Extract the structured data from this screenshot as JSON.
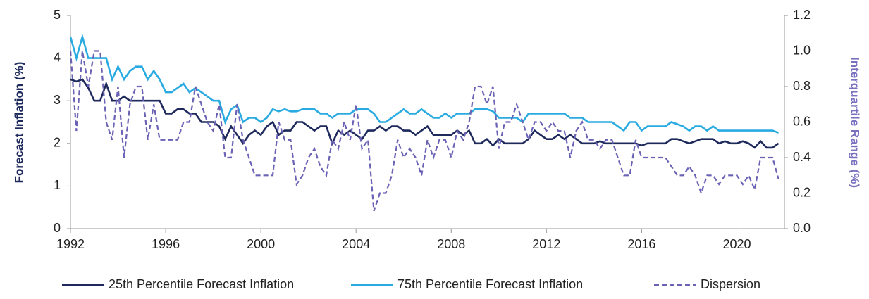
{
  "chart_data": {
    "type": "line",
    "x": [
      1992,
      1992.25,
      1992.5,
      1992.75,
      1993,
      1993.25,
      1993.5,
      1993.75,
      1994,
      1994.25,
      1994.5,
      1994.75,
      1995,
      1995.25,
      1995.5,
      1995.75,
      1996,
      1996.25,
      1996.5,
      1996.75,
      1997,
      1997.25,
      1997.5,
      1997.75,
      1998,
      1998.25,
      1998.5,
      1998.75,
      1999,
      1999.25,
      1999.5,
      1999.75,
      2000,
      2000.25,
      2000.5,
      2000.75,
      2001,
      2001.25,
      2001.5,
      2001.75,
      2002,
      2002.25,
      2002.5,
      2002.75,
      2003,
      2003.25,
      2003.5,
      2003.75,
      2004,
      2004.25,
      2004.5,
      2004.75,
      2005,
      2005.25,
      2005.5,
      2005.75,
      2006,
      2006.25,
      2006.5,
      2006.75,
      2007,
      2007.25,
      2007.5,
      2007.75,
      2008,
      2008.25,
      2008.5,
      2008.75,
      2009,
      2009.25,
      2009.5,
      2009.75,
      2010,
      2010.25,
      2010.5,
      2010.75,
      2011,
      2011.25,
      2011.5,
      2011.75,
      2012,
      2012.25,
      2012.5,
      2012.75,
      2013,
      2013.25,
      2013.5,
      2013.75,
      2014,
      2014.25,
      2014.5,
      2014.75,
      2015,
      2015.25,
      2015.5,
      2015.75,
      2016,
      2016.25,
      2016.5,
      2016.75,
      2017,
      2017.25,
      2017.5,
      2017.75,
      2018,
      2018.25,
      2018.5,
      2018.75,
      2019,
      2019.25,
      2019.5,
      2019.75,
      2020,
      2020.25,
      2020.5,
      2020.75,
      2021,
      2021.25,
      2021.5,
      2021.75
    ],
    "series": [
      {
        "name": "25th Percentile Forecast Inflation",
        "color": "#1f2a5c",
        "dash": false,
        "values": [
          3.5,
          3.45,
          3.5,
          3.3,
          3.0,
          3.0,
          3.4,
          3.0,
          3.0,
          3.1,
          3.0,
          3.0,
          3.0,
          3.0,
          3.0,
          3.0,
          2.7,
          2.7,
          2.8,
          2.8,
          2.7,
          2.7,
          2.5,
          2.5,
          2.5,
          2.4,
          2.1,
          2.4,
          2.2,
          2.0,
          2.2,
          2.3,
          2.2,
          2.4,
          2.5,
          2.2,
          2.3,
          2.3,
          2.5,
          2.5,
          2.4,
          2.3,
          2.4,
          2.4,
          2.0,
          2.3,
          2.2,
          2.3,
          2.2,
          2.1,
          2.3,
          2.3,
          2.4,
          2.3,
          2.4,
          2.4,
          2.3,
          2.3,
          2.2,
          2.3,
          2.4,
          2.2,
          2.2,
          2.2,
          2.2,
          2.3,
          2.2,
          2.3,
          2.0,
          2.0,
          2.1,
          1.95,
          2.1,
          2.0,
          2.0,
          2.0,
          2.0,
          2.1,
          2.3,
          2.2,
          2.1,
          2.1,
          2.2,
          2.1,
          2.2,
          2.1,
          2.0,
          2.0,
          2.0,
          2.05,
          2.0,
          2.0,
          2.0,
          2.0,
          2.0,
          2.0,
          1.95,
          2.0,
          2.0,
          2.0,
          2.0,
          2.1,
          2.1,
          2.05,
          2.0,
          2.05,
          2.1,
          2.1,
          2.1,
          2.0,
          2.05,
          2.0,
          2.0,
          2.05,
          2.0,
          1.9,
          2.05,
          1.9,
          1.9,
          2.0
        ]
      },
      {
        "name": "75th Percentile Forecast Inflation",
        "color": "#29abe2",
        "dash": false,
        "values": [
          4.5,
          4.0,
          4.5,
          4.0,
          4.0,
          4.0,
          4.0,
          3.5,
          3.8,
          3.5,
          3.7,
          3.8,
          3.8,
          3.5,
          3.7,
          3.5,
          3.2,
          3.2,
          3.3,
          3.4,
          3.2,
          3.3,
          3.2,
          3.1,
          3.0,
          3.0,
          2.5,
          2.8,
          2.9,
          2.5,
          2.6,
          2.6,
          2.5,
          2.6,
          2.8,
          2.75,
          2.8,
          2.75,
          2.75,
          2.8,
          2.8,
          2.8,
          2.7,
          2.7,
          2.6,
          2.7,
          2.7,
          2.7,
          2.8,
          2.8,
          2.8,
          2.7,
          2.5,
          2.5,
          2.6,
          2.7,
          2.8,
          2.7,
          2.7,
          2.8,
          2.7,
          2.6,
          2.6,
          2.7,
          2.6,
          2.7,
          2.7,
          2.7,
          2.8,
          2.8,
          2.8,
          2.75,
          2.6,
          2.6,
          2.6,
          2.6,
          2.5,
          2.7,
          2.7,
          2.7,
          2.7,
          2.7,
          2.7,
          2.7,
          2.6,
          2.6,
          2.6,
          2.5,
          2.5,
          2.5,
          2.5,
          2.5,
          2.4,
          2.3,
          2.5,
          2.5,
          2.3,
          2.4,
          2.4,
          2.4,
          2.4,
          2.5,
          2.45,
          2.4,
          2.3,
          2.4,
          2.4,
          2.3,
          2.4,
          2.3,
          2.3,
          2.3,
          2.3,
          2.3,
          2.3,
          2.3,
          2.3,
          2.3,
          2.3,
          2.25
        ]
      },
      {
        "name": "Dispersion",
        "color": "#6a62b4",
        "dash": true,
        "axis": "y2",
        "values": [
          1.0,
          0.55,
          1.0,
          0.8,
          1.0,
          1.0,
          0.6,
          0.5,
          0.8,
          0.4,
          0.7,
          0.8,
          0.8,
          0.5,
          0.7,
          0.5,
          0.5,
          0.5,
          0.5,
          0.6,
          0.6,
          0.8,
          0.7,
          0.6,
          0.55,
          0.7,
          0.4,
          0.4,
          0.7,
          0.5,
          0.4,
          0.3,
          0.3,
          0.3,
          0.3,
          0.6,
          0.5,
          0.5,
          0.25,
          0.3,
          0.4,
          0.45,
          0.35,
          0.3,
          0.5,
          0.45,
          0.6,
          0.5,
          0.7,
          0.45,
          0.5,
          0.1,
          0.2,
          0.2,
          0.3,
          0.5,
          0.4,
          0.45,
          0.4,
          0.3,
          0.5,
          0.4,
          0.5,
          0.5,
          0.4,
          0.55,
          0.5,
          0.6,
          0.8,
          0.8,
          0.7,
          0.8,
          0.45,
          0.6,
          0.6,
          0.7,
          0.6,
          0.5,
          0.6,
          0.6,
          0.55,
          0.6,
          0.55,
          0.55,
          0.4,
          0.55,
          0.6,
          0.5,
          0.5,
          0.45,
          0.5,
          0.5,
          0.4,
          0.3,
          0.3,
          0.5,
          0.4,
          0.4,
          0.4,
          0.4,
          0.4,
          0.35,
          0.3,
          0.3,
          0.35,
          0.3,
          0.2,
          0.3,
          0.3,
          0.25,
          0.3,
          0.3,
          0.3,
          0.25,
          0.3,
          0.22,
          0.4,
          0.4,
          0.4,
          0.28
        ]
      }
    ],
    "xlim": [
      1992,
      2022
    ],
    "xticks": [
      1992,
      1996,
      2000,
      2004,
      2008,
      2012,
      2016,
      2020
    ],
    "ylim": [
      0,
      5
    ],
    "yticks": [
      0,
      1,
      2,
      3,
      4,
      5
    ],
    "y2lim": [
      0,
      1.2
    ],
    "y2ticks": [
      {
        "value": 0,
        "label": "0.0"
      },
      0.2,
      0.4,
      0.6,
      0.8,
      {
        "value": 1,
        "label": "1.0"
      },
      1.2
    ],
    "ylabel": "Forecast Inflation (%)",
    "y2label": "Interquartile Range (%)",
    "legend": "bottom"
  }
}
